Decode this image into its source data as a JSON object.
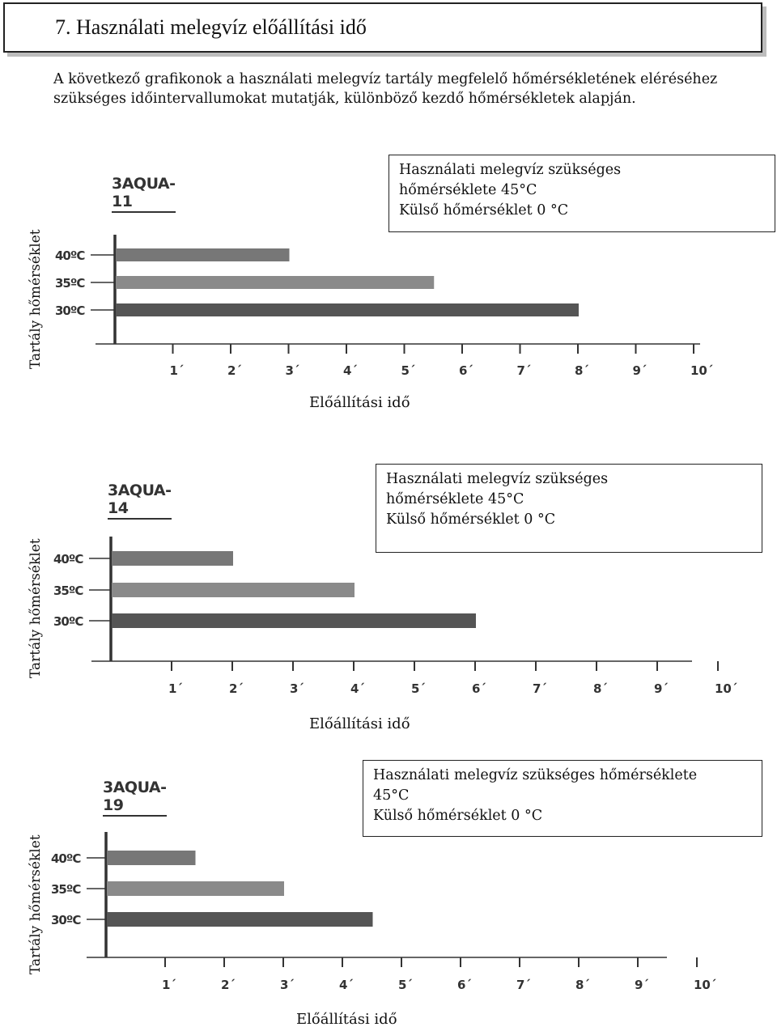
{
  "heading": "7. Használati melegvíz előállítási idő",
  "intro": "A következő grafikonok a használati melegvíz tartály megfelelő hőmérsékletének eléréséhez szükséges időintervallumokat mutatják, különböző kezdő hőmérsékletek alapján.",
  "colors": {
    "bar_40": "#777777",
    "bar_35": "#8a8a8a",
    "bar_30": "#555555",
    "axis": "#333333"
  },
  "chart_data": [
    {
      "type": "bar",
      "orientation": "horizontal",
      "title": "3AQUA-11",
      "info_lines": [
        "Használati melegvíz szükséges",
        "hőmérséklete 45°C",
        "Külső hőmérséklet 0 °C"
      ],
      "ylabel": "Tartály hőmérséklet",
      "xlabel": "Előállítási idő",
      "categories": [
        "40ºC",
        "35ºC",
        "30ºC"
      ],
      "values": [
        3,
        5.5,
        8
      ],
      "xlim": [
        0,
        10
      ],
      "xticks": [
        "1´",
        "2´",
        "3´",
        "4´",
        "5´",
        "6´",
        "7´",
        "8´",
        "9´",
        "10´"
      ],
      "grid": false
    },
    {
      "type": "bar",
      "orientation": "horizontal",
      "title": "3AQUA-14",
      "info_lines": [
        "Használati melegvíz szükséges",
        "hőmérséklete 45°C",
        "Külső hőmérséklet 0 °C"
      ],
      "ylabel": "Tartály hőmérséklet",
      "xlabel": "Előállítási idő",
      "categories": [
        "40ºC",
        "35ºC",
        "30ºC"
      ],
      "values": [
        2,
        4,
        6
      ],
      "xlim": [
        0,
        10
      ],
      "xticks": [
        "1´",
        "2´",
        "3´",
        "4´",
        "5´",
        "6´",
        "7´",
        "8´",
        "9´",
        "10´"
      ],
      "grid": false
    },
    {
      "type": "bar",
      "orientation": "horizontal",
      "title": "3AQUA-19",
      "info_lines": [
        "Használati melegvíz szükséges hőmérséklete",
        "45°C",
        "Külső hőmérséklet 0 °C"
      ],
      "ylabel": "Tartály hőmérséklet",
      "xlabel": "Előállítási idő",
      "categories": [
        "40ºC",
        "35ºC",
        "30ºC"
      ],
      "values": [
        1.5,
        3,
        4.5
      ],
      "xlim": [
        0,
        10
      ],
      "xticks": [
        "1´",
        "2´",
        "3´",
        "4´",
        "5´",
        "6´",
        "7´",
        "8´",
        "9´",
        "10´"
      ],
      "grid": false
    }
  ]
}
